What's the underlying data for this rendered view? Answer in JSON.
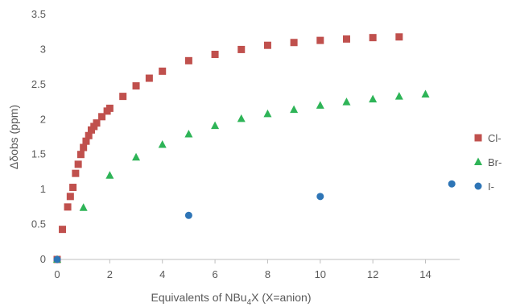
{
  "chart_data": {
    "type": "scatter",
    "title": "",
    "xlabel": {
      "prefix": "Equivalents of NBu",
      "sub": "4",
      "suffix": "X (X=anion)"
    },
    "ylabel": "Δδobs (ppm)",
    "xlim": [
      0,
      15.3
    ],
    "ylim": [
      0,
      3.5
    ],
    "xticks": [
      0,
      2,
      4,
      6,
      8,
      10,
      12,
      14
    ],
    "yticks": [
      0,
      0.5,
      1,
      1.5,
      2,
      2.5,
      3,
      3.5
    ],
    "grid": false,
    "legend_position": "right",
    "series": [
      {
        "name": "Cl-",
        "marker": "square",
        "color": "#c0504d",
        "points": [
          [
            0,
            0
          ],
          [
            0.2,
            0.43
          ],
          [
            0.4,
            0.75
          ],
          [
            0.5,
            0.9
          ],
          [
            0.6,
            1.03
          ],
          [
            0.7,
            1.23
          ],
          [
            0.8,
            1.36
          ],
          [
            0.9,
            1.5
          ],
          [
            1.0,
            1.6
          ],
          [
            1.1,
            1.69
          ],
          [
            1.2,
            1.77
          ],
          [
            1.3,
            1.85
          ],
          [
            1.4,
            1.9
          ],
          [
            1.5,
            1.95
          ],
          [
            1.7,
            2.04
          ],
          [
            1.9,
            2.12
          ],
          [
            2.0,
            2.16
          ],
          [
            2.5,
            2.33
          ],
          [
            3.0,
            2.48
          ],
          [
            3.5,
            2.59
          ],
          [
            4.0,
            2.69
          ],
          [
            5.0,
            2.84
          ],
          [
            6.0,
            2.93
          ],
          [
            7.0,
            3.0
          ],
          [
            8.0,
            3.06
          ],
          [
            9.0,
            3.1
          ],
          [
            10.0,
            3.13
          ],
          [
            11.0,
            3.15
          ],
          [
            12.0,
            3.17
          ],
          [
            13.0,
            3.18
          ]
        ]
      },
      {
        "name": "Br-",
        "marker": "triangle",
        "color": "#2eb457",
        "points": [
          [
            0,
            0
          ],
          [
            1.0,
            0.74
          ],
          [
            2.0,
            1.2
          ],
          [
            3.0,
            1.46
          ],
          [
            4.0,
            1.64
          ],
          [
            5.0,
            1.79
          ],
          [
            6.0,
            1.91
          ],
          [
            7.0,
            2.01
          ],
          [
            8.0,
            2.08
          ],
          [
            9.0,
            2.14
          ],
          [
            10.0,
            2.2
          ],
          [
            11.0,
            2.25
          ],
          [
            12.0,
            2.29
          ],
          [
            13.0,
            2.33
          ],
          [
            14.0,
            2.36
          ]
        ]
      },
      {
        "name": "I-",
        "marker": "circle",
        "color": "#2e75b6",
        "points": [
          [
            0,
            0
          ],
          [
            5.0,
            0.63
          ],
          [
            10.0,
            0.9
          ],
          [
            15.0,
            1.08
          ]
        ]
      }
    ]
  }
}
